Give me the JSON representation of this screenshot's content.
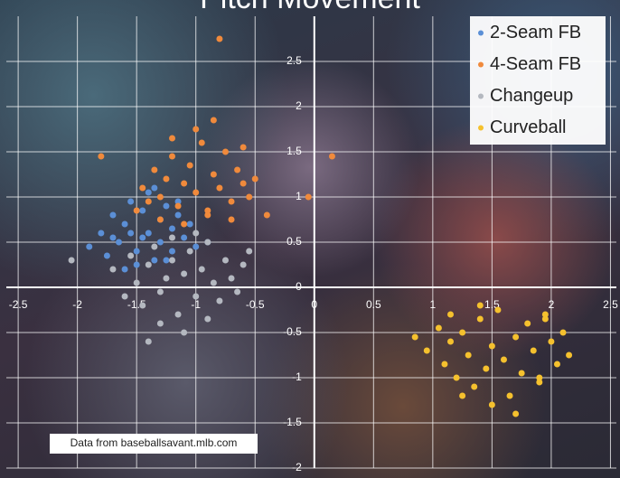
{
  "chart_data": {
    "type": "scatter",
    "title": "Pitch Movement",
    "annotation": "Data from baseballsavant.mlb.com",
    "xlim": [
      -2.6,
      2.55
    ],
    "ylim": [
      -2,
      3
    ],
    "xticks": [
      -2.5,
      -2,
      -1.5,
      -1,
      -0.5,
      0,
      0.5,
      1,
      1.5,
      2,
      2.5
    ],
    "yticks": [
      -2,
      -1.5,
      -1,
      -0.5,
      0,
      0.5,
      1,
      1.5,
      2,
      2.5
    ],
    "grid": true,
    "legend": "top-right",
    "series": [
      {
        "name": "2-Seam FB",
        "color": "#5b8fd6",
        "x": [
          -1.9,
          -1.8,
          -1.75,
          -1.7,
          -1.65,
          -1.6,
          -1.55,
          -1.5,
          -1.45,
          -1.4,
          -1.4,
          -1.35,
          -1.3,
          -1.3,
          -1.25,
          -1.2,
          -1.2,
          -1.15,
          -1.1,
          -1.05,
          -1.0,
          -1.5,
          -1.6,
          -1.35,
          -1.45,
          -1.25,
          -1.7,
          -1.55,
          -0.9,
          -1.15
        ],
        "values": [
          0.45,
          0.6,
          0.35,
          0.8,
          0.5,
          0.7,
          0.95,
          0.4,
          0.85,
          0.6,
          1.05,
          0.3,
          0.75,
          0.5,
          0.9,
          0.65,
          0.4,
          0.8,
          0.55,
          0.7,
          0.45,
          0.25,
          0.2,
          1.1,
          0.55,
          0.3,
          0.55,
          0.6,
          0.5,
          0.95
        ]
      },
      {
        "name": "4-Seam FB",
        "color": "#f08a3c",
        "x": [
          -1.45,
          -1.4,
          -1.35,
          -1.3,
          -1.25,
          -1.2,
          -1.15,
          -1.1,
          -1.05,
          -1.0,
          -0.95,
          -0.9,
          -0.85,
          -0.8,
          -0.75,
          -0.7,
          -0.65,
          -0.6,
          -0.55,
          -0.5,
          -1.3,
          -1.1,
          -0.9,
          -0.7,
          -1.0,
          -0.85,
          -1.2,
          -0.6,
          -1.8,
          -0.8,
          0.15,
          -0.05,
          -0.4,
          -1.5
        ],
        "values": [
          1.1,
          0.95,
          1.3,
          1.0,
          1.2,
          1.45,
          0.9,
          1.15,
          1.35,
          1.05,
          1.6,
          0.85,
          1.25,
          1.1,
          1.5,
          0.95,
          1.3,
          1.15,
          1.0,
          1.2,
          0.75,
          0.7,
          0.8,
          0.75,
          1.75,
          1.85,
          1.65,
          1.55,
          1.45,
          2.75,
          1.45,
          1.0,
          0.8,
          0.85
        ]
      },
      {
        "name": "Changeup",
        "color": "#b4b8c0",
        "x": [
          -1.7,
          -1.6,
          -1.55,
          -1.5,
          -1.45,
          -1.4,
          -1.35,
          -1.3,
          -1.25,
          -1.2,
          -1.15,
          -1.1,
          -1.05,
          -1.0,
          -0.95,
          -0.9,
          -0.85,
          -0.8,
          -0.75,
          -0.7,
          -0.65,
          -0.6,
          -1.3,
          -1.1,
          -0.9,
          -1.2,
          -1.0,
          -2.05,
          -1.4,
          -0.55
        ],
        "values": [
          0.2,
          -0.1,
          0.35,
          0.05,
          -0.2,
          0.25,
          0.45,
          -0.05,
          0.1,
          0.3,
          -0.3,
          0.15,
          0.4,
          -0.1,
          0.2,
          0.5,
          0.05,
          -0.15,
          0.3,
          0.1,
          -0.05,
          0.25,
          -0.4,
          -0.5,
          -0.35,
          0.55,
          0.6,
          0.3,
          -0.6,
          0.4
        ]
      },
      {
        "name": "Curveball",
        "color": "#f5c12e",
        "x": [
          0.85,
          0.95,
          1.05,
          1.1,
          1.15,
          1.2,
          1.25,
          1.3,
          1.35,
          1.4,
          1.45,
          1.5,
          1.55,
          1.6,
          1.65,
          1.7,
          1.75,
          1.8,
          1.85,
          1.9,
          1.95,
          2.0,
          2.05,
          2.1,
          2.15,
          1.25,
          1.5,
          1.7,
          1.4,
          1.9,
          1.95,
          1.15
        ],
        "values": [
          -0.55,
          -0.7,
          -0.45,
          -0.85,
          -0.6,
          -1.0,
          -0.5,
          -0.75,
          -1.1,
          -0.35,
          -0.9,
          -0.65,
          -0.25,
          -0.8,
          -1.2,
          -0.55,
          -0.95,
          -0.4,
          -0.7,
          -1.05,
          -0.3,
          -0.6,
          -0.85,
          -0.5,
          -0.75,
          -1.2,
          -1.3,
          -1.4,
          -0.2,
          -1.0,
          -0.35,
          -0.3
        ]
      }
    ]
  }
}
